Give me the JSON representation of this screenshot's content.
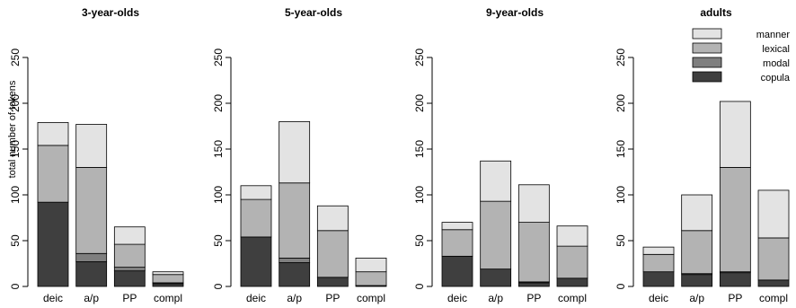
{
  "chart_data": {
    "type": "bar",
    "stacked": true,
    "ylabel": "total number of tokens",
    "ylim": [
      0,
      250
    ],
    "yticks": [
      0,
      50,
      100,
      150,
      200,
      250
    ],
    "categories": [
      "deic",
      "a/p",
      "PP",
      "compl"
    ],
    "legend": {
      "placement": "top-right of last panel",
      "entries": [
        {
          "name": "manner",
          "color": "#e3e3e3"
        },
        {
          "name": "lexical",
          "color": "#b3b3b3"
        },
        {
          "name": "modal",
          "color": "#7f7f7f"
        },
        {
          "name": "copula",
          "color": "#3f3f3f"
        }
      ]
    },
    "stack_order_bottom_to_top": [
      "copula",
      "modal",
      "lexical",
      "manner"
    ],
    "panels": [
      {
        "title": "3-year-olds",
        "series": [
          {
            "name": "copula",
            "values": [
              92,
              27,
              17,
              3
            ]
          },
          {
            "name": "modal",
            "values": [
              0,
              9,
              4,
              1
            ]
          },
          {
            "name": "lexical",
            "values": [
              62,
              94,
              25,
              9
            ]
          },
          {
            "name": "manner",
            "values": [
              25,
              47,
              19,
              3
            ]
          }
        ]
      },
      {
        "title": "5-year-olds",
        "series": [
          {
            "name": "copula",
            "values": [
              54,
              26,
              10,
              1
            ]
          },
          {
            "name": "modal",
            "values": [
              0,
              5,
              0,
              0
            ]
          },
          {
            "name": "lexical",
            "values": [
              41,
              82,
              51,
              15
            ]
          },
          {
            "name": "manner",
            "values": [
              15,
              67,
              27,
              15
            ]
          }
        ]
      },
      {
        "title": "9-year-olds",
        "series": [
          {
            "name": "copula",
            "values": [
              33,
              19,
              4,
              9
            ]
          },
          {
            "name": "modal",
            "values": [
              0,
              0,
              1,
              0
            ]
          },
          {
            "name": "lexical",
            "values": [
              29,
              74,
              65,
              35
            ]
          },
          {
            "name": "manner",
            "values": [
              8,
              44,
              41,
              22
            ]
          }
        ]
      },
      {
        "title": "adults",
        "series": [
          {
            "name": "copula",
            "values": [
              16,
              13,
              15,
              7
            ]
          },
          {
            "name": "modal",
            "values": [
              0,
              1,
              1,
              0
            ]
          },
          {
            "name": "lexical",
            "values": [
              19,
              47,
              114,
              46
            ]
          },
          {
            "name": "manner",
            "values": [
              8,
              39,
              72,
              52
            ]
          }
        ]
      }
    ]
  }
}
